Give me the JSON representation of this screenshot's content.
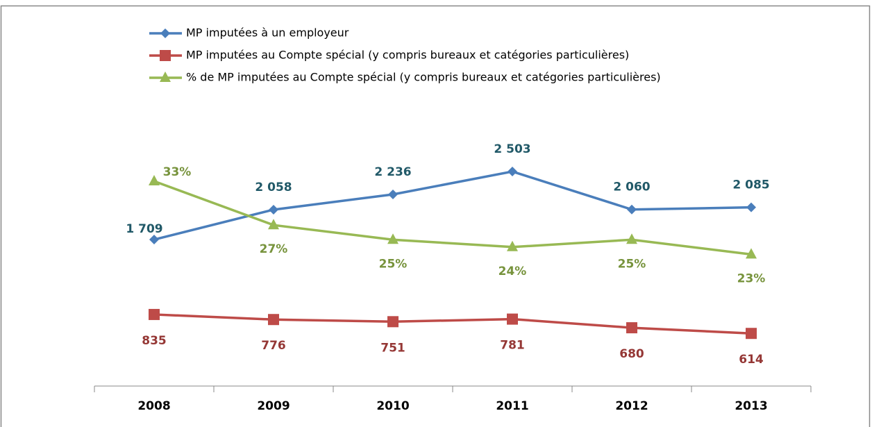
{
  "chart_data": {
    "type": "line",
    "categories": [
      "2008",
      "2009",
      "2010",
      "2011",
      "2012",
      "2013"
    ],
    "series": [
      {
        "name": "MP imputées à un employeur",
        "color": "#4a7ebb",
        "marker": "diamond",
        "values": [
          1709,
          2058,
          2236,
          2503,
          2060,
          2085
        ],
        "value_labels": [
          "1 709",
          "2 058",
          "2 236",
          "2 503",
          "2 060",
          "2 085"
        ]
      },
      {
        "name": "MP imputées au Compte spécial (y compris bureaux et catégories particulières)",
        "color": "#be4b48",
        "marker": "square",
        "values": [
          835,
          776,
          751,
          781,
          680,
          614
        ]
      },
      {
        "name": "% de MP imputées au Compte spécial (y compris bureaux et catégories particulières)",
        "color": "#98b954",
        "marker": "triangle",
        "axis": "y2",
        "values": [
          33,
          27,
          25,
          24,
          25,
          23
        ],
        "value_labels": [
          "33%",
          "27%",
          "25%",
          "24%",
          "25%",
          "23%"
        ]
      }
    ],
    "ylim": [
      0,
      3500
    ],
    "y2lim": [
      5,
      46
    ]
  }
}
